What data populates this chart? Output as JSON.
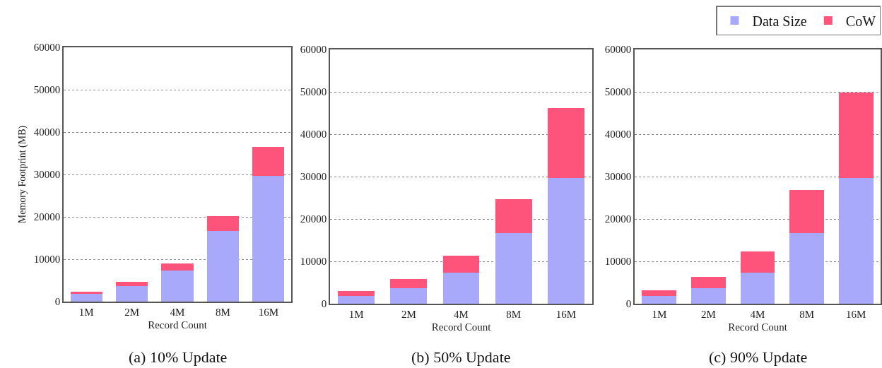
{
  "chart_data": [
    {
      "type": "bar",
      "title": "(a) 10% Update",
      "xlabel": "Record Count",
      "ylabel": "Memory Footprint (MB)",
      "categories": [
        "1M",
        "2M",
        "4M",
        "8M",
        "16M"
      ],
      "stacked": true,
      "ylim": [
        0,
        60000
      ],
      "yticks": [
        0,
        10000,
        20000,
        30000,
        40000,
        50000,
        60000
      ],
      "grid": "y",
      "series": [
        {
          "color": "#a9a9fb",
          "values": [
            1900,
            3700,
            7300,
            16700,
            29700
          ]
        },
        {
          "color": "#fe547b",
          "values": [
            500,
            900,
            1700,
            3500,
            6800
          ]
        }
      ]
    },
    {
      "type": "bar",
      "title": "(b) 50% Update",
      "xlabel": "Record Count",
      "categories": [
        "1M",
        "2M",
        "4M",
        "8M",
        "16M"
      ],
      "stacked": true,
      "ylim": [
        0,
        60000
      ],
      "yticks": [
        0,
        10000,
        20000,
        30000,
        40000,
        50000,
        60000
      ],
      "grid": "y",
      "series": [
        {
          "color": "#a9a9fb",
          "values": [
            1900,
            3700,
            7300,
            16700,
            29700
          ]
        },
        {
          "color": "#fe547b",
          "values": [
            1100,
            2100,
            4000,
            8000,
            16400
          ]
        }
      ]
    },
    {
      "type": "bar",
      "title": "(c) 90% Update",
      "xlabel": "Record Count",
      "categories": [
        "1M",
        "2M",
        "4M",
        "8M",
        "16M"
      ],
      "stacked": true,
      "ylim": [
        0,
        60000
      ],
      "yticks": [
        0,
        10000,
        20000,
        30000,
        40000,
        50000,
        60000
      ],
      "grid": "y",
      "legend": "top right",
      "series": [
        {
          "name": "Data Size",
          "color": "#a9a9fb",
          "values": [
            1900,
            3700,
            7300,
            16700,
            29700
          ]
        },
        {
          "name": "CoW",
          "color": "#fe547b",
          "values": [
            1300,
            2600,
            5000,
            10100,
            20100
          ]
        }
      ]
    }
  ]
}
